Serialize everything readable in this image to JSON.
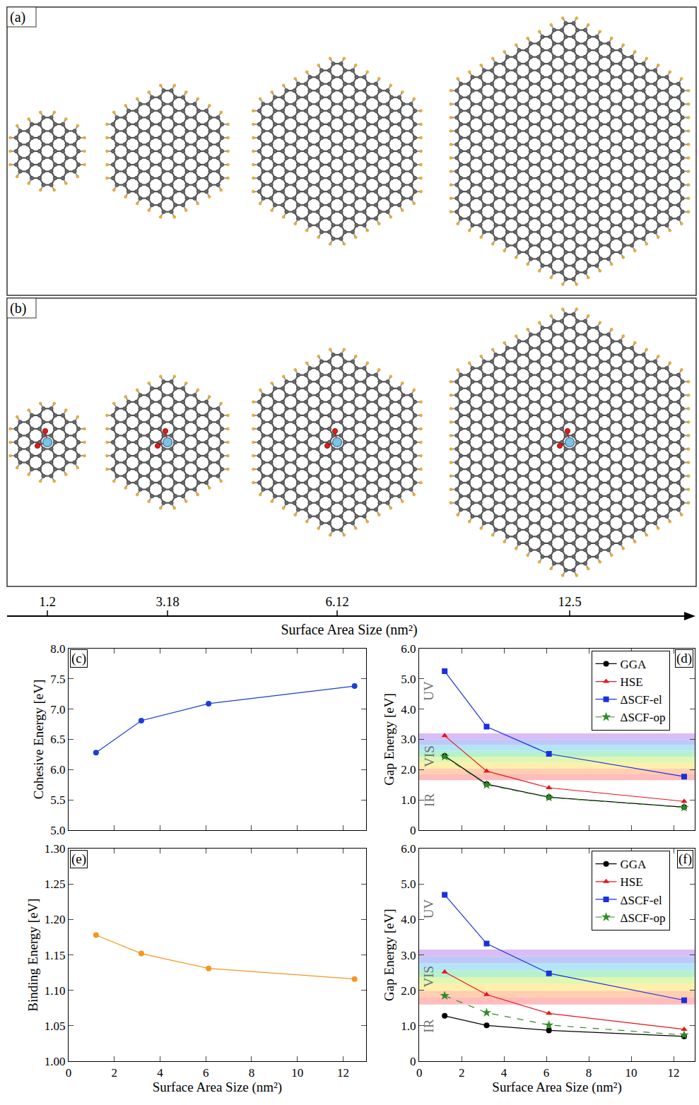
{
  "diagram": {
    "panels": [
      {
        "label": "(a)",
        "adsorbate": false
      },
      {
        "label": "(b)",
        "adsorbate": true
      }
    ],
    "size_axis": {
      "title": "Surface Area Size (nm²)",
      "ticks": [
        1.2,
        3.18,
        6.12,
        12.5
      ]
    }
  },
  "chart_data": [
    {
      "type": "line",
      "panel_label": "(c)",
      "ylabel": "Cohesive Energy [eV]",
      "x": [
        1.2,
        3.18,
        6.12,
        12.5
      ],
      "series": [
        {
          "values": [
            6.28,
            6.81,
            7.09,
            7.38
          ],
          "color": "#1a3fd9",
          "marker": "circle",
          "line_style": "solid"
        }
      ],
      "xlim": [
        0,
        13
      ],
      "xticks": [
        0,
        2,
        4,
        6,
        8,
        10,
        12
      ],
      "ylim": [
        5,
        8
      ],
      "yticks": [
        {
          "value": 5,
          "label": "5.0"
        },
        5.5,
        {
          "value": 6,
          "label": "6.0"
        },
        6.5,
        {
          "value": 7,
          "label": "7.0"
        },
        7.5,
        {
          "value": 8,
          "label": "8.0"
        }
      ],
      "tick_labels": "y"
    },
    {
      "type": "line",
      "panel_label": "(d)",
      "ylabel": "Gap Energy [eV]",
      "x": [
        1.2,
        3.18,
        6.12,
        12.5
      ],
      "series": [
        {
          "name": "GGA",
          "values": [
            2.45,
            1.52,
            1.09,
            0.76
          ],
          "color": "#000000",
          "marker": "circle",
          "line_style": "solid"
        },
        {
          "name": "HSE",
          "values": [
            3.12,
            1.95,
            1.4,
            0.95
          ],
          "color": "#e8141b",
          "marker": "triangle-up",
          "line_style": "solid"
        },
        {
          "name": "ΔSCF-el",
          "values": [
            5.25,
            3.42,
            2.52,
            1.77
          ],
          "color": "#1a2fe0",
          "marker": "square",
          "line_style": "solid"
        },
        {
          "name": "ΔSCF-op",
          "values": [
            2.43,
            1.5,
            1.08,
            0.75
          ],
          "color": "#2e8b22",
          "marker": "star",
          "line_style": "dash"
        }
      ],
      "visible_band": [
        1.65,
        3.2
      ],
      "regions": [
        {
          "label": "UV",
          "y": 4.6
        },
        {
          "label": "VIS",
          "y": 2.45
        },
        {
          "label": "IR",
          "y": 1.0
        }
      ],
      "legend": "upper right",
      "xlim": [
        0,
        13
      ],
      "xticks": [
        0,
        2,
        4,
        6,
        8,
        10,
        12
      ],
      "ylim": [
        0,
        6
      ],
      "yticks": [
        0,
        {
          "value": 1,
          "label": "1.0"
        },
        {
          "value": 2,
          "label": "2.0"
        },
        {
          "value": 3,
          "label": "3.0"
        },
        {
          "value": 4,
          "label": "4.0"
        },
        {
          "value": 5,
          "label": "5.0"
        },
        {
          "value": 6,
          "label": "6.0"
        }
      ],
      "tick_labels": "y"
    },
    {
      "type": "line",
      "panel_label": "(e)",
      "xlabel": "Surface Area Size (nm²)",
      "ylabel": "Binding Energy [eV]",
      "x": [
        1.2,
        3.18,
        6.12,
        12.5
      ],
      "series": [
        {
          "values": [
            1.178,
            1.152,
            1.131,
            1.116
          ],
          "color": "#f5961e",
          "marker": "circle",
          "line_style": "solid"
        }
      ],
      "xlim": [
        0,
        13
      ],
      "xticks": [
        0,
        2,
        4,
        6,
        8,
        10,
        12
      ],
      "ylim": [
        1.0,
        1.3
      ],
      "yticks": [
        {
          "value": 1.0,
          "label": "1.00"
        },
        1.05,
        {
          "value": 1.1,
          "label": "1.10"
        },
        1.15,
        {
          "value": 1.2,
          "label": "1.20"
        },
        1.25,
        {
          "value": 1.3,
          "label": "1.30"
        }
      ]
    },
    {
      "type": "line",
      "panel_label": "(f)",
      "xlabel": "Surface Area Size (nm²)",
      "ylabel": "Gap Energy [eV]",
      "x": [
        1.2,
        3.18,
        6.12,
        12.5
      ],
      "series": [
        {
          "name": "GGA",
          "values": [
            1.28,
            1.01,
            0.87,
            0.7
          ],
          "color": "#000000",
          "marker": "circle",
          "line_style": "solid"
        },
        {
          "name": "HSE",
          "values": [
            2.52,
            1.88,
            1.35,
            0.9
          ],
          "color": "#e8141b",
          "marker": "triangle-up",
          "line_style": "solid"
        },
        {
          "name": "ΔSCF-el",
          "values": [
            4.7,
            3.32,
            2.48,
            1.72
          ],
          "color": "#1a2fe0",
          "marker": "square",
          "line_style": "solid"
        },
        {
          "name": "ΔSCF-op",
          "values": [
            1.85,
            1.37,
            1.02,
            0.74
          ],
          "color": "#2e8b22",
          "marker": "star",
          "line_style": "dash"
        }
      ],
      "visible_band": [
        1.6,
        3.15
      ],
      "regions": [
        {
          "label": "UV",
          "y": 4.3
        },
        {
          "label": "VIS",
          "y": 2.4
        },
        {
          "label": "IR",
          "y": 1.0
        }
      ],
      "legend": "upper right",
      "xlim": [
        0,
        13
      ],
      "xticks": [
        0,
        2,
        4,
        6,
        8,
        10,
        12
      ],
      "ylim": [
        0,
        6
      ],
      "yticks": [
        0,
        {
          "value": 1,
          "label": "1.0"
        },
        {
          "value": 2,
          "label": "2.0"
        },
        {
          "value": 3,
          "label": "3.0"
        },
        {
          "value": 4,
          "label": "4.0"
        },
        {
          "value": 5,
          "label": "5.0"
        },
        {
          "value": 6,
          "label": "6.0"
        }
      ]
    }
  ]
}
